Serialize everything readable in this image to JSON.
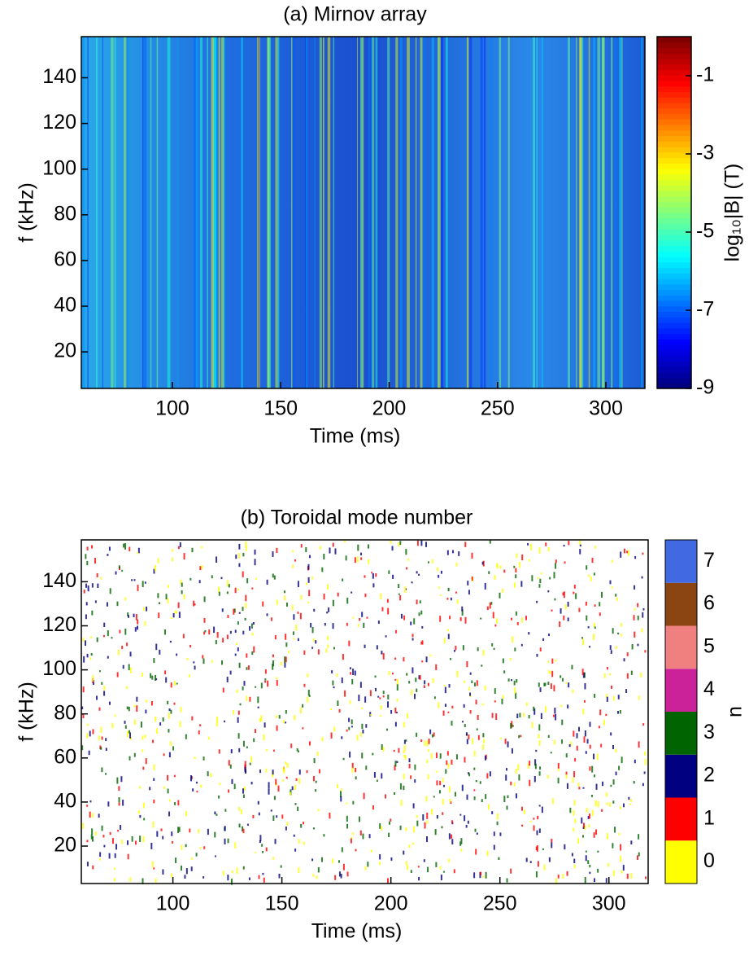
{
  "chart_data": [
    {
      "type": "spectrogram",
      "title": "(a) Mirnov array",
      "xlabel": "Time (ms)",
      "ylabel": "f (kHz)",
      "xlim": [
        58,
        318
      ],
      "xticks": [
        100,
        150,
        200,
        250,
        300
      ],
      "ylim": [
        4,
        158
      ],
      "yticks": [
        20,
        40,
        60,
        80,
        100,
        120,
        140
      ],
      "colormap": "jet",
      "colorbar": {
        "label": "log₁₀|B| (T)",
        "lim": [
          -9,
          0
        ],
        "ticks": [
          -1,
          -3,
          -5,
          -7,
          -9
        ]
      }
    },
    {
      "type": "spectrogram",
      "title": "(b) Toroidal mode number",
      "xlabel": "Time (ms)",
      "ylabel": "f (kHz)",
      "xlim": [
        58,
        318
      ],
      "xticks": [
        100,
        150,
        200,
        250,
        300
      ],
      "ylim": [
        3,
        159
      ],
      "yticks": [
        20,
        40,
        60,
        80,
        100,
        120,
        140
      ],
      "colorbar": {
        "label": "n",
        "categories": [
          0,
          1,
          2,
          3,
          4,
          5,
          6,
          7
        ],
        "colors": [
          "#ffff00",
          "#ff0000",
          "#000080",
          "#006400",
          "#cc2299",
          "#f08080",
          "#8b4513",
          "#4169e1"
        ]
      }
    }
  ]
}
